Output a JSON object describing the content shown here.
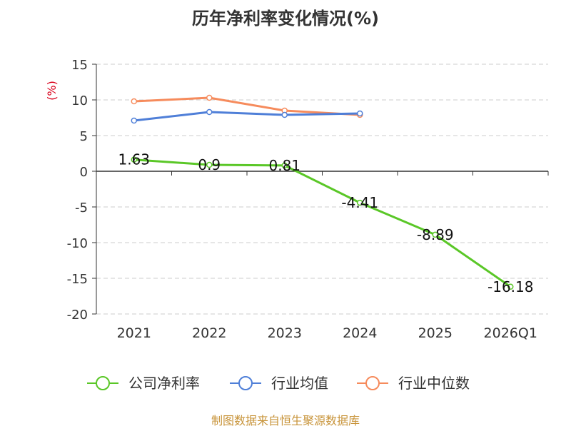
{
  "chart_data": {
    "type": "line",
    "title": "历年净利率变化情况(%)",
    "ylabel": "(%)",
    "xlabel": "",
    "categories": [
      "2021",
      "2022",
      "2023",
      "2024",
      "2025",
      "2026Q1"
    ],
    "ylim": [
      -20,
      15
    ],
    "yticks": [
      15,
      10,
      5,
      0,
      -5,
      -10,
      -15,
      -20
    ],
    "grid": true,
    "legend_position": "bottom",
    "series": [
      {
        "name": "公司净利率",
        "color": "#5ac727",
        "values": [
          1.63,
          0.9,
          0.81,
          -4.41,
          -8.89,
          -16.18
        ],
        "labels": [
          "1.63",
          "0.9",
          "0.81",
          "-4.41",
          "-8.89",
          "-16.18"
        ]
      },
      {
        "name": "行业均值",
        "color": "#4f7fd8",
        "values": [
          7.1,
          8.3,
          7.9,
          8.1,
          null,
          null
        ]
      },
      {
        "name": "行业中位数",
        "color": "#f68b5c",
        "values": [
          9.8,
          10.3,
          8.5,
          7.9,
          null,
          null
        ]
      }
    ]
  },
  "footer": {
    "source": "制图数据来自恒生聚源数据库"
  }
}
